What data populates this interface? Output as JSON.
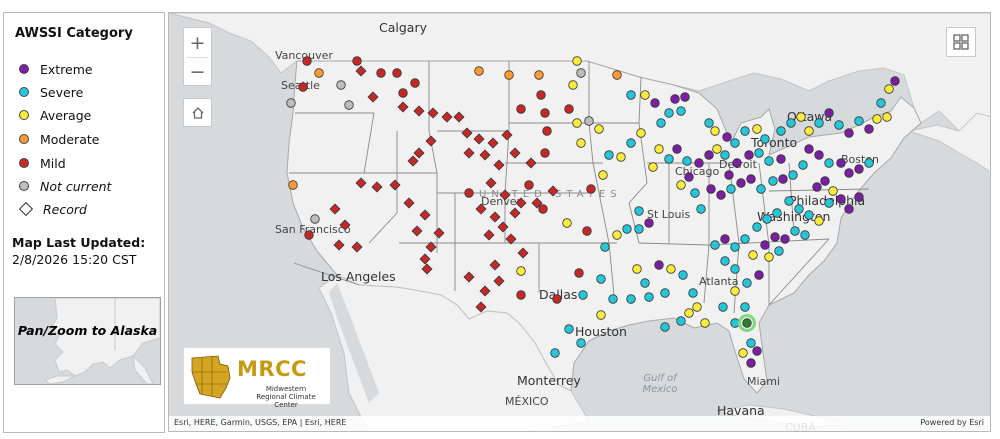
{
  "legend": {
    "title": "AWSSI Category",
    "items": [
      {
        "label": "Extreme",
        "color": "#7b1fa2"
      },
      {
        "label": "Severe",
        "color": "#26c6da"
      },
      {
        "label": "Average",
        "color": "#ffeb3b"
      },
      {
        "label": "Moderate",
        "color": "#ff9933"
      },
      {
        "label": "Mild",
        "color": "#c62828"
      },
      {
        "label": "Not current",
        "color": "#bdbdbd"
      }
    ],
    "record_label": "Record"
  },
  "updated": {
    "label": "Map Last Updated:",
    "value": "2/8/2026 15:20 CST"
  },
  "inset": {
    "label": "Pan/Zoom to Alaska"
  },
  "map": {
    "labels": [
      {
        "text": "Calgary",
        "cls": "big"
      },
      {
        "text": "Vancouver",
        "cls": ""
      },
      {
        "text": "Seattle",
        "cls": ""
      },
      {
        "text": "San Francisco",
        "cls": ""
      },
      {
        "text": "Los Angeles",
        "cls": "big"
      },
      {
        "text": "Denver",
        "cls": ""
      },
      {
        "text": "Dallas",
        "cls": "big"
      },
      {
        "text": "Houston",
        "cls": "big"
      },
      {
        "text": "Monterrey",
        "cls": "big"
      },
      {
        "text": "MÉXICO",
        "cls": ""
      },
      {
        "text": "Ottawa",
        "cls": "big"
      },
      {
        "text": "Toronto",
        "cls": "big"
      },
      {
        "text": "Detroit",
        "cls": ""
      },
      {
        "text": "Chicago",
        "cls": ""
      },
      {
        "text": "St Louis",
        "cls": ""
      },
      {
        "text": "Atlanta",
        "cls": ""
      },
      {
        "text": "Washington",
        "cls": "big"
      },
      {
        "text": "Philadelphia",
        "cls": "big"
      },
      {
        "text": "Boston",
        "cls": ""
      },
      {
        "text": "Miami",
        "cls": ""
      },
      {
        "text": "Havana",
        "cls": "big"
      },
      {
        "text": "CUBA",
        "cls": ""
      },
      {
        "text": "Gulf of Mexico",
        "cls": "water"
      },
      {
        "text": "UNITED STATES",
        "cls": "country"
      }
    ],
    "attribution": "Esri, HERE, Garmin, USGS, EPA | Esri, HERE",
    "powered_by": "Powered by Esri",
    "logo": {
      "name": "MRCC",
      "subtitle": "Midwestern Regional Climate Center"
    }
  }
}
